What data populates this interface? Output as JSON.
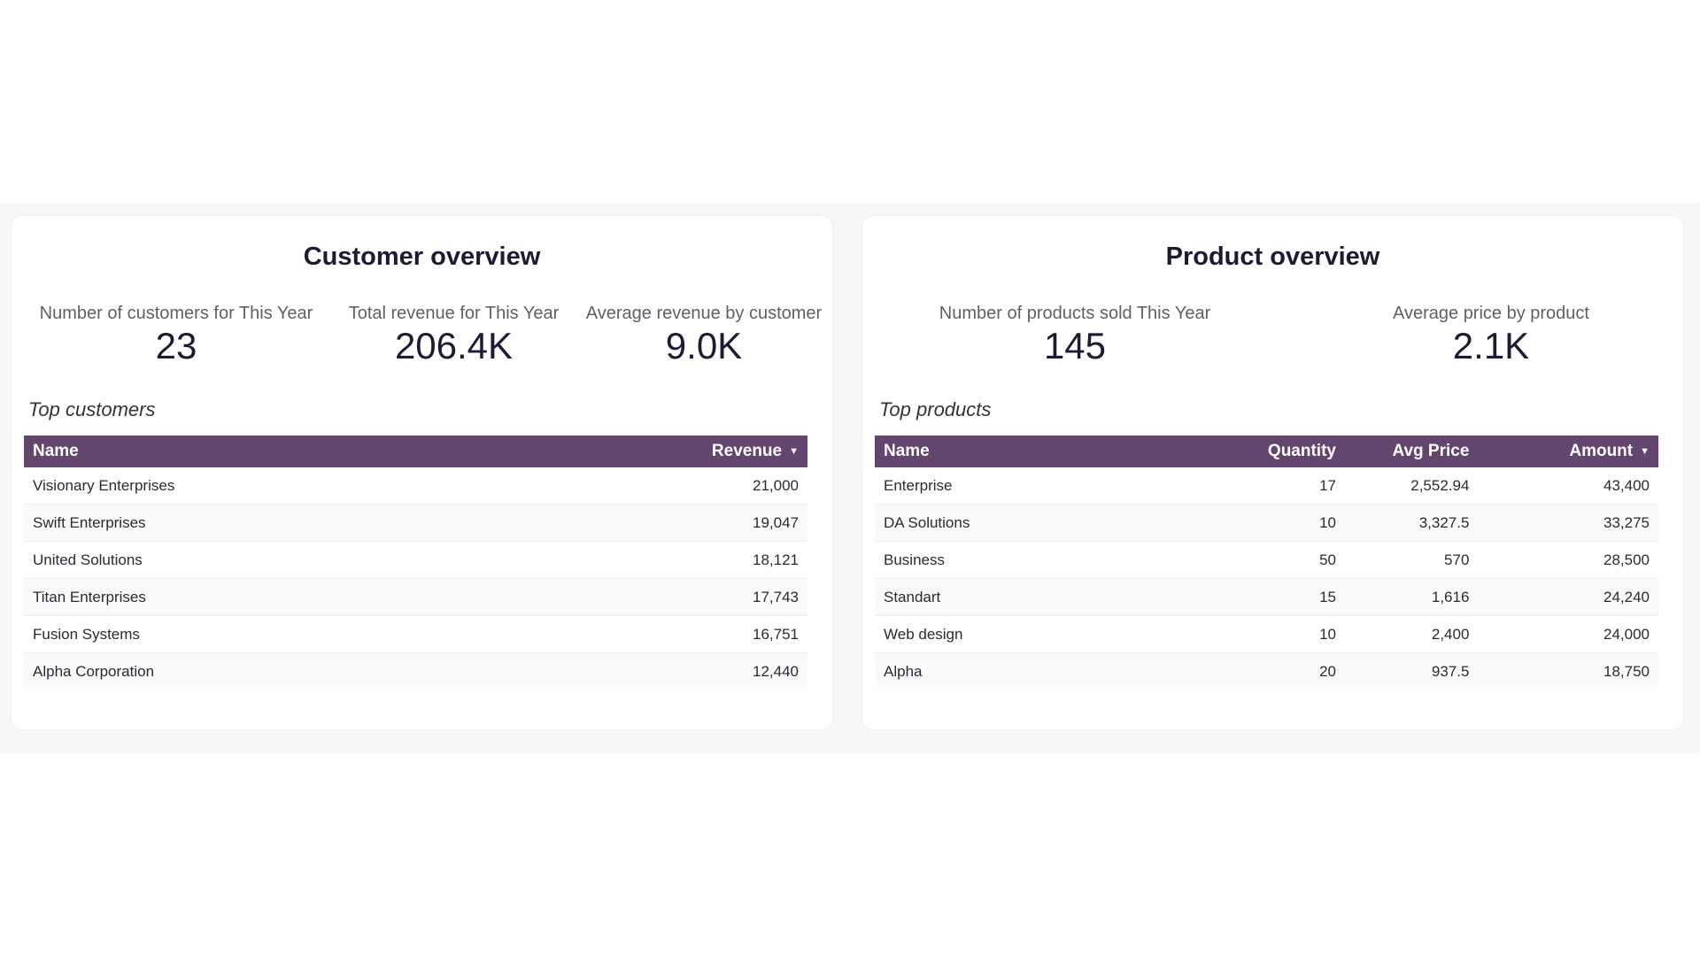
{
  "customer_overview": {
    "title": "Customer overview",
    "kpis": [
      {
        "label": "Number of customers for This Year",
        "value": "23"
      },
      {
        "label": "Total revenue for This Year",
        "value": "206.4K"
      },
      {
        "label": "Average revenue by customer",
        "value": "9.0K"
      }
    ],
    "table_label": "Top customers",
    "columns": [
      "Name",
      "Revenue"
    ],
    "sort_icon": "caret-down-icon",
    "rows": [
      [
        "Visionary Enterprises",
        "21,000"
      ],
      [
        "Swift Enterprises",
        "19,047"
      ],
      [
        "United Solutions",
        "18,121"
      ],
      [
        "Titan Enterprises",
        "17,743"
      ],
      [
        "Fusion Systems",
        "16,751"
      ],
      [
        "Alpha Corporation",
        "12,440"
      ]
    ]
  },
  "product_overview": {
    "title": "Product overview",
    "kpis": [
      {
        "label": "Number of products sold This Year",
        "value": "145"
      },
      {
        "label": "Average price by product",
        "value": "2.1K"
      }
    ],
    "table_label": "Top products",
    "columns": [
      "Name",
      "Quantity",
      "Avg Price",
      "Amount"
    ],
    "sort_icon": "caret-down-icon",
    "rows": [
      [
        "Enterprise",
        "17",
        "2,552.94",
        "43,400"
      ],
      [
        "DA Solutions",
        "10",
        "3,327.5",
        "33,275"
      ],
      [
        "Business",
        "50",
        "570",
        "28,500"
      ],
      [
        "Standart",
        "15",
        "1,616",
        "24,240"
      ],
      [
        "Web design",
        "10",
        "2,400",
        "24,000"
      ],
      [
        "Alpha",
        "20",
        "937.5",
        "18,750"
      ]
    ]
  },
  "colors": {
    "header_bg": "#63456f",
    "band_bg": "#f7f7f8"
  }
}
